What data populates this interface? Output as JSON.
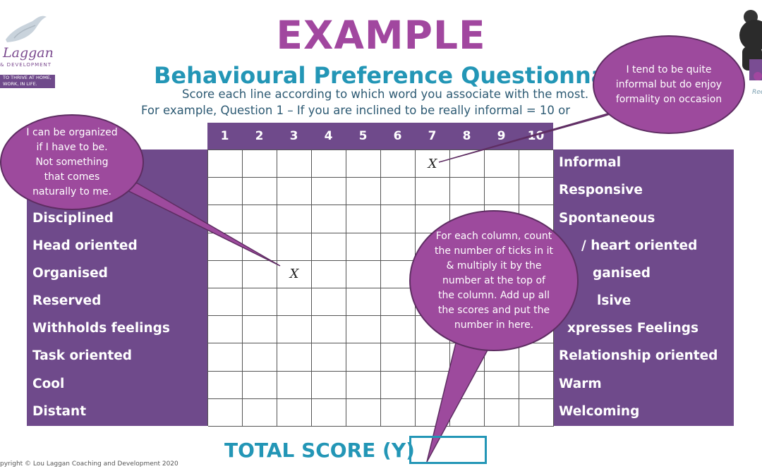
{
  "logo": {
    "name": "Laggan",
    "sub": "& DEVELOPMENT",
    "band": "TO THRIVE AT HOME, WORK, IN LIFE."
  },
  "mascot": {
    "caption": "Ree"
  },
  "title": "EXAMPLE",
  "subtitle": "Behavioural Preference Questionnai",
  "instruction_1": "Score each line according to which word you associate with the most.",
  "instruction_2": "For example, Question 1 – If you are inclined to be really informal = 10 or",
  "column_numbers": [
    "1",
    "2",
    "3",
    "4",
    "5",
    "6",
    "7",
    "8",
    "9",
    "10"
  ],
  "left_labels": [
    "",
    "",
    "Disciplined",
    "Head oriented",
    "Organised",
    "Reserved",
    "Withholds feelings",
    "Task oriented",
    "Cool",
    "Distant"
  ],
  "right_labels": [
    "Informal",
    "Responsive",
    "Spontaneous",
    "/ heart oriented",
    "ganised",
    "lsive",
    "xpresses Feelings",
    "Relationship oriented",
    "Warm",
    "Welcoming"
  ],
  "marks": [
    {
      "row": 1,
      "column": 7,
      "symbol": "X"
    },
    {
      "row": 5,
      "column": 3,
      "symbol": "X"
    }
  ],
  "bubbles": {
    "left": [
      "I can be organized",
      "if I have to be.",
      "Not something",
      "that comes",
      "naturally to me."
    ],
    "top_right": [
      "I tend to be quite",
      "informal but do enjoy",
      "formality on occasion"
    ],
    "middle": [
      "For each column, count",
      "the number of ticks in it",
      "& multiply it by the",
      "number at the top of",
      "the column.  Add up all",
      "the scores and put the",
      "number in here."
    ]
  },
  "total_label": "TOTAL SCORE (Y)",
  "total_value": "",
  "copyright": "pyright © Lou Laggan Coaching and Development 2020",
  "colors": {
    "purple_dark": "#6f4a8b",
    "magenta": "#a1479f",
    "bubble": "#9d4a9d",
    "teal": "#2396b6"
  }
}
